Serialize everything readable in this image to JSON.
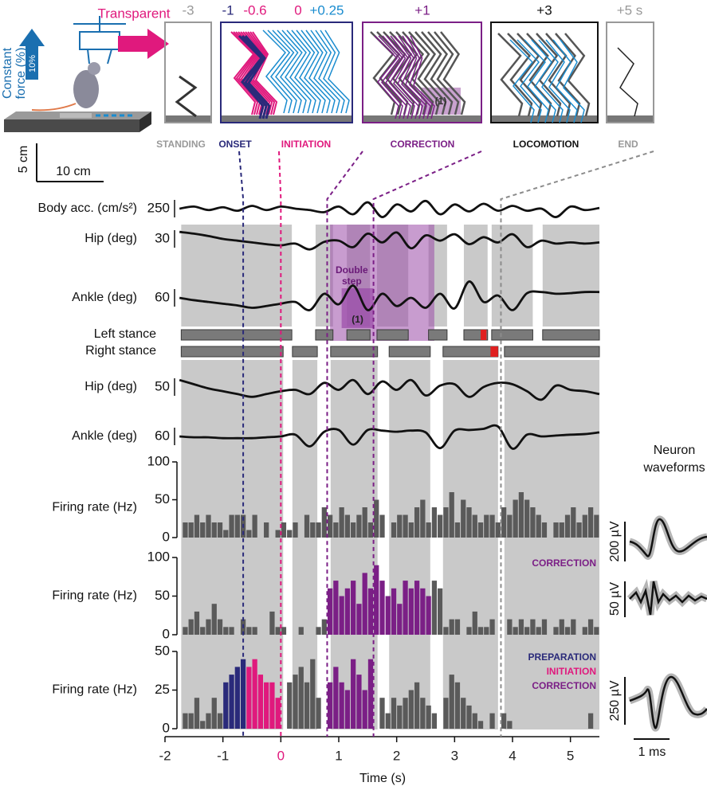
{
  "figure": {
    "transparent": "Transparent",
    "force_label": [
      "Constant",
      "force (%)"
    ],
    "force_value": "10%",
    "times": [
      "-3",
      "-1",
      "-0.6",
      "0",
      "+0.25",
      "+1",
      "+3",
      "+5 s"
    ],
    "phases": [
      "STANDING",
      "ONSET",
      "INITIATION",
      "CORRECTION",
      "LOCOMOTION",
      "END"
    ],
    "correction_note": "(1)",
    "scale_v": "5 cm",
    "scale_h": "10 cm"
  },
  "waveforms": {
    "title": [
      "Neuron",
      "waveforms"
    ],
    "scales": [
      "200 µV",
      "50 µV",
      "250 µV"
    ],
    "time_scale": "1 ms"
  },
  "time_axis": {
    "xlim": [
      -2,
      5.5
    ],
    "xticks": [
      -2,
      -1,
      0,
      1,
      2,
      3,
      4,
      5
    ],
    "xtick_colors": [
      "#222",
      "#222",
      "#e0197d",
      "#222",
      "#222",
      "#222",
      "#222",
      "#222"
    ],
    "xlabel": "Time (s)",
    "events": [
      {
        "x": -0.65,
        "color": "#2a2a7a"
      },
      {
        "x": 0,
        "color": "#e0197d"
      },
      {
        "x": 0.8,
        "color": "#7b1f86"
      },
      {
        "x": 1.6,
        "color": "#7b1f86"
      },
      {
        "x": 3.8,
        "color": "#8c8c8c"
      }
    ]
  },
  "chart_data": [
    {
      "type": "traces",
      "band_color": "#c9c9c9",
      "x": [
        -1.75,
        -1.5,
        -1.25,
        -1,
        -0.75,
        -0.5,
        -0.25,
        0,
        0.25,
        0.5,
        0.75,
        1,
        1.25,
        1.5,
        1.75,
        2,
        2.25,
        2.5,
        2.75,
        3,
        3.25,
        3.5,
        3.75,
        4,
        4.25,
        4.5,
        4.75,
        5,
        5.25,
        5.5
      ],
      "series": [
        {
          "name": "Body acc. (cm/s²)",
          "scale": 250,
          "values": [
            0,
            30,
            -20,
            20,
            -30,
            40,
            -20,
            30,
            0,
            -20,
            -50,
            30,
            -80,
            90,
            -120,
            60,
            -40,
            110,
            -80,
            60,
            -40,
            70,
            -30,
            40,
            -30,
            0,
            -120,
            30,
            -20,
            10
          ]
        },
        {
          "name": "Hip (deg)",
          "scale": 30,
          "values": [
            12,
            9,
            5,
            0,
            -3,
            -6,
            -9,
            -11,
            -8,
            -18,
            -5,
            -3,
            -14,
            9,
            -6,
            11,
            -16,
            6,
            -3,
            8,
            -9,
            3,
            -6,
            8,
            -14,
            -3,
            -8,
            -6,
            -8,
            -6
          ]
        },
        {
          "name": "Ankle (deg)",
          "scale": 60,
          "values": [
            0,
            -8,
            -14,
            -20,
            -26,
            -34,
            -28,
            -20,
            -14,
            -42,
            14,
            -22,
            42,
            -42,
            14,
            -28,
            0,
            -34,
            14,
            -36,
            56,
            -14,
            8,
            -42,
            16,
            20,
            14,
            16,
            20,
            20
          ]
        },
        {
          "name": "Hip (deg)",
          "scale": 50,
          "values": [
            20,
            8,
            -4,
            -12,
            -20,
            -28,
            -20,
            -12,
            -8,
            -20,
            12,
            -8,
            20,
            -20,
            16,
            -8,
            20,
            -24,
            4,
            8,
            -28,
            0,
            12,
            8,
            -12,
            -36,
            4,
            -8,
            -12,
            -20
          ]
        },
        {
          "name": "Ankle (deg)",
          "scale": 60,
          "values": [
            0,
            -3,
            -3,
            -6,
            -6,
            -6,
            -3,
            0,
            6,
            -34,
            16,
            22,
            -28,
            22,
            20,
            16,
            20,
            14,
            -40,
            20,
            22,
            26,
            34,
            -42,
            6,
            0,
            3,
            6,
            8,
            14
          ]
        }
      ],
      "stance": {
        "left_label": "Left stance",
        "right_label": "Right stance",
        "color": "#7a7a7a",
        "event_color": "#e02020",
        "left": [
          [
            -1.72,
            0.19
          ],
          [
            0.6,
            0.9
          ],
          [
            1.14,
            1.54
          ],
          [
            1.66,
            2.2
          ],
          [
            2.55,
            2.87
          ],
          [
            3.16,
            3.57
          ],
          [
            3.64,
            4.35
          ],
          [
            4.52,
            5.5
          ]
        ],
        "right": [
          [
            -1.72,
            0.04
          ],
          [
            0.2,
            0.63
          ],
          [
            0.86,
            1.67
          ],
          [
            1.87,
            2.58
          ],
          [
            2.8,
            3.75
          ],
          [
            3.86,
            5.5
          ]
        ],
        "left_events": [
          [
            3.45,
            3.55
          ]
        ],
        "right_events": [
          [
            3.62,
            3.75
          ]
        ]
      },
      "double_step": {
        "label": [
          "Double",
          "step"
        ],
        "note": "(1)",
        "color": "#9a4aa8",
        "from": 0.85,
        "to": 2.65,
        "inner_from": 1.05,
        "inner_to": 1.6
      }
    },
    {
      "type": "histogram",
      "ylabel": "Firing rate (Hz)",
      "color": "#5a5a5a",
      "bins": [
        -1.7,
        -1.6,
        -1.5,
        -1.4,
        -1.3,
        -1.2,
        -1.1,
        -1,
        -0.9,
        -0.8,
        -0.7,
        -0.6,
        -0.5,
        -0.4,
        -0.3,
        -0.2,
        -0.1,
        0,
        0.1,
        0.2,
        0.3,
        0.4,
        0.5,
        0.6,
        0.7,
        0.8,
        0.9,
        1,
        1.1,
        1.2,
        1.3,
        1.4,
        1.5,
        1.6,
        1.7,
        1.8,
        1.9,
        2,
        2.1,
        2.2,
        2.3,
        2.4,
        2.5,
        2.6,
        2.7,
        2.8,
        2.9,
        3,
        3.1,
        3.2,
        3.3,
        3.4,
        3.5,
        3.6,
        3.7,
        3.8,
        3.9,
        4,
        4.1,
        4.2,
        4.3,
        4.4,
        4.5,
        4.6,
        4.7,
        4.8,
        4.9,
        5,
        5.1,
        5.2,
        5.3,
        5.4,
        5.5
      ],
      "series": [
        {
          "ylim": [
            0,
            100
          ],
          "yticks": [
            0,
            50,
            100
          ],
          "highlights": [],
          "values": [
            20,
            20,
            30,
            20,
            30,
            20,
            20,
            10,
            30,
            30,
            30,
            10,
            30,
            0,
            20,
            0,
            10,
            20,
            10,
            20,
            0,
            30,
            20,
            20,
            40,
            30,
            20,
            40,
            30,
            20,
            30,
            40,
            20,
            50,
            30,
            0,
            20,
            30,
            30,
            20,
            40,
            50,
            20,
            40,
            30,
            40,
            60,
            20,
            50,
            40,
            30,
            20,
            30,
            30,
            20,
            40,
            30,
            50,
            60,
            50,
            40,
            30,
            20,
            0,
            20,
            20,
            30,
            40,
            20,
            30,
            40,
            30
          ]
        },
        {
          "ylim": [
            0,
            100
          ],
          "yticks": [
            0,
            50,
            100
          ],
          "highlights": [
            {
              "label": "CORRECTION",
              "color": "#7b1f86",
              "from": 0.8,
              "to": 2.6
            }
          ],
          "values": [
            10,
            20,
            30,
            10,
            20,
            40,
            20,
            10,
            10,
            0,
            20,
            10,
            10,
            0,
            0,
            30,
            10,
            10,
            0,
            0,
            10,
            0,
            0,
            10,
            20,
            60,
            70,
            50,
            60,
            70,
            40,
            80,
            60,
            90,
            70,
            50,
            60,
            40,
            70,
            60,
            70,
            60,
            50,
            70,
            60,
            10,
            20,
            20,
            0,
            10,
            30,
            10,
            10,
            20,
            0,
            0,
            20,
            10,
            20,
            10,
            20,
            10,
            20,
            0,
            10,
            20,
            10,
            20,
            0,
            10,
            20,
            10
          ]
        },
        {
          "ylim": [
            0,
            50
          ],
          "yticks": [
            0,
            25,
            50
          ],
          "highlights": [
            {
              "label": "PREPARATION",
              "color": "#2a2a7a",
              "from": -1,
              "to": -0.6
            },
            {
              "label": "INITIATION",
              "color": "#e0197d",
              "from": -0.6,
              "to": 0
            },
            {
              "label": "CORRECTION",
              "color": "#7b1f86",
              "from": 0.8,
              "to": 1.6
            }
          ],
          "values": [
            10,
            10,
            20,
            5,
            10,
            20,
            10,
            30,
            35,
            40,
            45,
            40,
            45,
            35,
            30,
            30,
            20,
            0,
            30,
            35,
            40,
            30,
            45,
            20,
            0,
            30,
            40,
            30,
            25,
            45,
            35,
            25,
            45,
            0,
            20,
            10,
            20,
            15,
            20,
            25,
            30,
            20,
            15,
            10,
            0,
            20,
            35,
            30,
            20,
            15,
            10,
            5,
            0,
            10,
            0,
            10,
            5,
            0,
            0,
            0,
            0,
            0,
            0,
            0,
            0,
            0,
            0,
            0,
            0,
            0,
            10,
            0
          ]
        }
      ]
    }
  ]
}
